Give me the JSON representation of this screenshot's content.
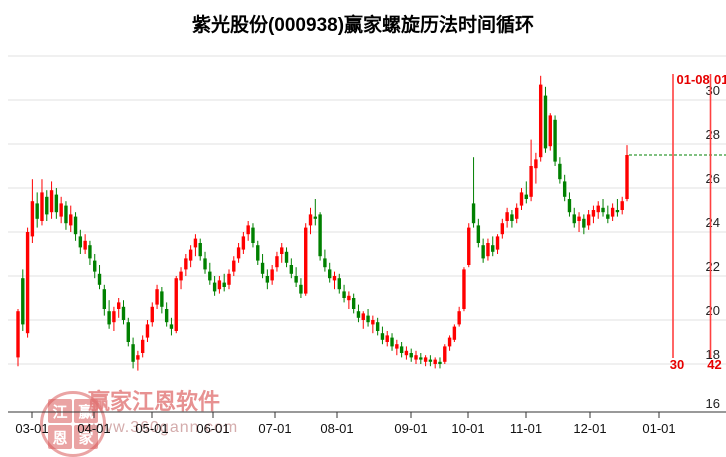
{
  "title": "紫光股份(000938)赢家螺旋历法时间循环",
  "watermark": {
    "brand": "赢家江恩软件",
    "url": "www.360gann.com",
    "seal_chars": [
      "江",
      "赢",
      "恩",
      "家"
    ]
  },
  "chart_data": {
    "type": "candlestick",
    "title": "紫光股份(000938)赢家螺旋历法时间循环",
    "x_ticks": [
      "03-01",
      "04-01",
      "05-01",
      "06-01",
      "07-01",
      "08-01",
      "09-01",
      "10-01",
      "11-01",
      "12-01",
      "01-01"
    ],
    "y_ticks": [
      30,
      28,
      26,
      24,
      22,
      20,
      18,
      16
    ],
    "ylim": [
      16,
      32
    ],
    "grid": true,
    "colors": {
      "up": "#ff0000",
      "down": "#008000",
      "grid": "#e2e2e2",
      "axis": "#333333",
      "tick_label": "#111111",
      "cycle_line": "#ff4040",
      "cycle_label": "#e60000",
      "last_close_line": "#008000"
    },
    "last_close_line": 27.5,
    "cycle_lines": [
      {
        "date_label": "01-08",
        "count_label": "30"
      },
      {
        "date_label": "01-",
        "count_label": "42"
      }
    ],
    "candles": [
      [
        18.3,
        20.5,
        17.9,
        20.4
      ],
      [
        21.9,
        22.3,
        19.5,
        19.8
      ],
      [
        19.4,
        24.2,
        19.2,
        24.0
      ],
      [
        23.8,
        26.4,
        23.5,
        25.4
      ],
      [
        25.3,
        25.8,
        24.2,
        24.6
      ],
      [
        24.5,
        26.4,
        24.3,
        25.8
      ],
      [
        25.6,
        25.9,
        24.5,
        24.8
      ],
      [
        24.9,
        26.3,
        24.6,
        25.9
      ],
      [
        25.7,
        26.0,
        24.6,
        24.9
      ],
      [
        24.7,
        25.6,
        24.4,
        25.3
      ],
      [
        25.2,
        25.4,
        24.1,
        24.4
      ],
      [
        24.3,
        25.2,
        24.0,
        24.8
      ],
      [
        24.7,
        24.9,
        23.6,
        23.9
      ],
      [
        23.8,
        24.1,
        23.0,
        23.3
      ],
      [
        23.2,
        23.9,
        23.0,
        23.6
      ],
      [
        23.4,
        23.6,
        22.5,
        22.8
      ],
      [
        22.7,
        23.0,
        21.9,
        22.2
      ],
      [
        22.1,
        22.5,
        21.4,
        21.6
      ],
      [
        21.4,
        21.6,
        20.2,
        20.5
      ],
      [
        20.4,
        20.9,
        19.6,
        19.8
      ],
      [
        19.9,
        20.6,
        19.5,
        20.4
      ],
      [
        20.5,
        21.0,
        20.1,
        20.8
      ],
      [
        20.6,
        20.9,
        19.8,
        20.0
      ],
      [
        19.9,
        20.1,
        18.8,
        19.0
      ],
      [
        18.9,
        19.2,
        17.8,
        18.1
      ],
      [
        18.2,
        18.6,
        17.7,
        18.4
      ],
      [
        18.5,
        19.3,
        18.3,
        19.1
      ],
      [
        19.2,
        20.0,
        19.0,
        19.8
      ],
      [
        19.9,
        20.8,
        19.7,
        20.6
      ],
      [
        20.7,
        21.6,
        20.5,
        21.4
      ],
      [
        21.3,
        21.5,
        20.3,
        20.6
      ],
      [
        20.5,
        20.8,
        19.7,
        19.9
      ],
      [
        19.8,
        20.1,
        19.3,
        19.6
      ],
      [
        19.5,
        22.0,
        19.4,
        21.9
      ],
      [
        21.8,
        22.4,
        21.4,
        22.2
      ],
      [
        22.3,
        23.0,
        22.0,
        22.8
      ],
      [
        22.7,
        23.4,
        22.4,
        23.2
      ],
      [
        23.3,
        23.9,
        22.9,
        23.7
      ],
      [
        23.5,
        23.7,
        22.7,
        22.9
      ],
      [
        22.8,
        23.1,
        22.1,
        22.3
      ],
      [
        22.2,
        22.6,
        21.6,
        21.8
      ],
      [
        21.7,
        22.0,
        21.1,
        21.3
      ],
      [
        21.4,
        22.0,
        21.2,
        21.8
      ],
      [
        21.7,
        22.1,
        21.3,
        21.5
      ],
      [
        21.6,
        22.3,
        21.4,
        22.1
      ],
      [
        22.2,
        22.9,
        22.0,
        22.7
      ],
      [
        22.8,
        23.5,
        22.6,
        23.3
      ],
      [
        23.2,
        24.0,
        23.0,
        23.8
      ],
      [
        23.9,
        24.5,
        23.6,
        24.3
      ],
      [
        24.2,
        24.4,
        23.3,
        23.5
      ],
      [
        23.4,
        23.6,
        22.5,
        22.7
      ],
      [
        22.6,
        23.0,
        21.9,
        22.1
      ],
      [
        22.0,
        22.3,
        21.4,
        21.7
      ],
      [
        21.8,
        22.5,
        21.6,
        22.3
      ],
      [
        22.4,
        23.1,
        22.2,
        22.9
      ],
      [
        23.0,
        23.5,
        22.6,
        23.3
      ],
      [
        23.1,
        23.3,
        22.4,
        22.6
      ],
      [
        22.5,
        22.8,
        21.9,
        22.1
      ],
      [
        22.0,
        22.4,
        21.5,
        21.7
      ],
      [
        21.6,
        21.9,
        21.0,
        21.2
      ],
      [
        21.2,
        24.4,
        21.1,
        24.2
      ],
      [
        24.3,
        25.1,
        23.9,
        24.8
      ],
      [
        24.7,
        25.5,
        24.3,
        24.6
      ],
      [
        24.8,
        24.9,
        22.7,
        22.9
      ],
      [
        22.8,
        23.2,
        22.2,
        22.4
      ],
      [
        22.3,
        22.6,
        21.7,
        21.9
      ],
      [
        21.8,
        22.2,
        21.4,
        22.0
      ],
      [
        21.9,
        22.1,
        21.2,
        21.4
      ],
      [
        21.3,
        21.6,
        20.8,
        21.0
      ],
      [
        20.9,
        21.3,
        20.5,
        21.1
      ],
      [
        21.0,
        21.2,
        20.3,
        20.5
      ],
      [
        20.4,
        20.7,
        19.9,
        20.1
      ],
      [
        20.0,
        20.4,
        19.6,
        20.3
      ],
      [
        20.2,
        20.5,
        19.7,
        19.9
      ],
      [
        19.8,
        20.2,
        19.4,
        20.0
      ],
      [
        19.9,
        20.1,
        19.3,
        19.5
      ],
      [
        19.4,
        19.7,
        18.9,
        19.1
      ],
      [
        19.0,
        19.5,
        18.8,
        19.3
      ],
      [
        19.2,
        19.4,
        18.6,
        18.8
      ],
      [
        18.7,
        19.1,
        18.4,
        18.9
      ],
      [
        18.8,
        19.0,
        18.3,
        18.5
      ],
      [
        18.4,
        18.8,
        18.2,
        18.6
      ],
      [
        18.5,
        18.7,
        18.1,
        18.3
      ],
      [
        18.2,
        18.6,
        18.0,
        18.4
      ],
      [
        18.3,
        18.5,
        18.0,
        18.2
      ],
      [
        18.1,
        18.4,
        17.9,
        18.3
      ],
      [
        18.2,
        18.4,
        17.9,
        18.1
      ],
      [
        18.0,
        18.3,
        17.8,
        18.2
      ],
      [
        18.1,
        18.3,
        17.8,
        18.0
      ],
      [
        18.1,
        18.9,
        18.0,
        18.8
      ],
      [
        18.8,
        19.3,
        18.6,
        19.2
      ],
      [
        19.1,
        19.8,
        19.0,
        19.7
      ],
      [
        19.8,
        20.6,
        19.7,
        20.4
      ],
      [
        20.5,
        22.4,
        20.4,
        22.3
      ],
      [
        22.5,
        24.4,
        22.4,
        24.2
      ],
      [
        25.3,
        27.4,
        24.2,
        24.4
      ],
      [
        24.3,
        24.6,
        23.3,
        23.5
      ],
      [
        23.4,
        23.7,
        22.6,
        22.8
      ],
      [
        22.9,
        23.7,
        22.7,
        23.5
      ],
      [
        23.4,
        23.8,
        22.9,
        23.1
      ],
      [
        23.2,
        23.9,
        23.0,
        23.8
      ],
      [
        23.9,
        24.6,
        23.7,
        24.4
      ],
      [
        24.5,
        25.1,
        24.2,
        24.9
      ],
      [
        24.8,
        25.0,
        24.2,
        24.5
      ],
      [
        24.6,
        25.3,
        24.4,
        25.1
      ],
      [
        25.2,
        26.0,
        25.0,
        25.8
      ],
      [
        25.7,
        26.3,
        25.3,
        25.5
      ],
      [
        25.6,
        28.2,
        25.4,
        27.0
      ],
      [
        26.9,
        27.6,
        26.2,
        27.3
      ],
      [
        27.4,
        31.1,
        27.2,
        30.7
      ],
      [
        30.2,
        30.6,
        27.6,
        27.8
      ],
      [
        27.9,
        29.4,
        27.7,
        29.3
      ],
      [
        29.1,
        29.3,
        27.0,
        27.2
      ],
      [
        27.1,
        27.4,
        26.2,
        26.4
      ],
      [
        26.3,
        26.6,
        25.4,
        25.6
      ],
      [
        25.5,
        25.8,
        24.7,
        24.9
      ],
      [
        24.8,
        25.1,
        24.2,
        24.4
      ],
      [
        24.5,
        24.9,
        24.0,
        24.7
      ],
      [
        24.6,
        24.8,
        23.9,
        24.2
      ],
      [
        24.3,
        25.0,
        24.1,
        24.8
      ],
      [
        24.7,
        25.2,
        24.4,
        25.0
      ],
      [
        24.9,
        25.4,
        24.6,
        25.2
      ],
      [
        25.1,
        25.5,
        24.7,
        24.9
      ],
      [
        24.8,
        25.2,
        24.4,
        24.6
      ],
      [
        24.7,
        25.3,
        24.5,
        25.1
      ],
      [
        25.0,
        25.5,
        24.7,
        24.9
      ],
      [
        25.0,
        25.6,
        24.8,
        25.4
      ],
      [
        25.5,
        27.95,
        25.4,
        27.5
      ]
    ]
  }
}
